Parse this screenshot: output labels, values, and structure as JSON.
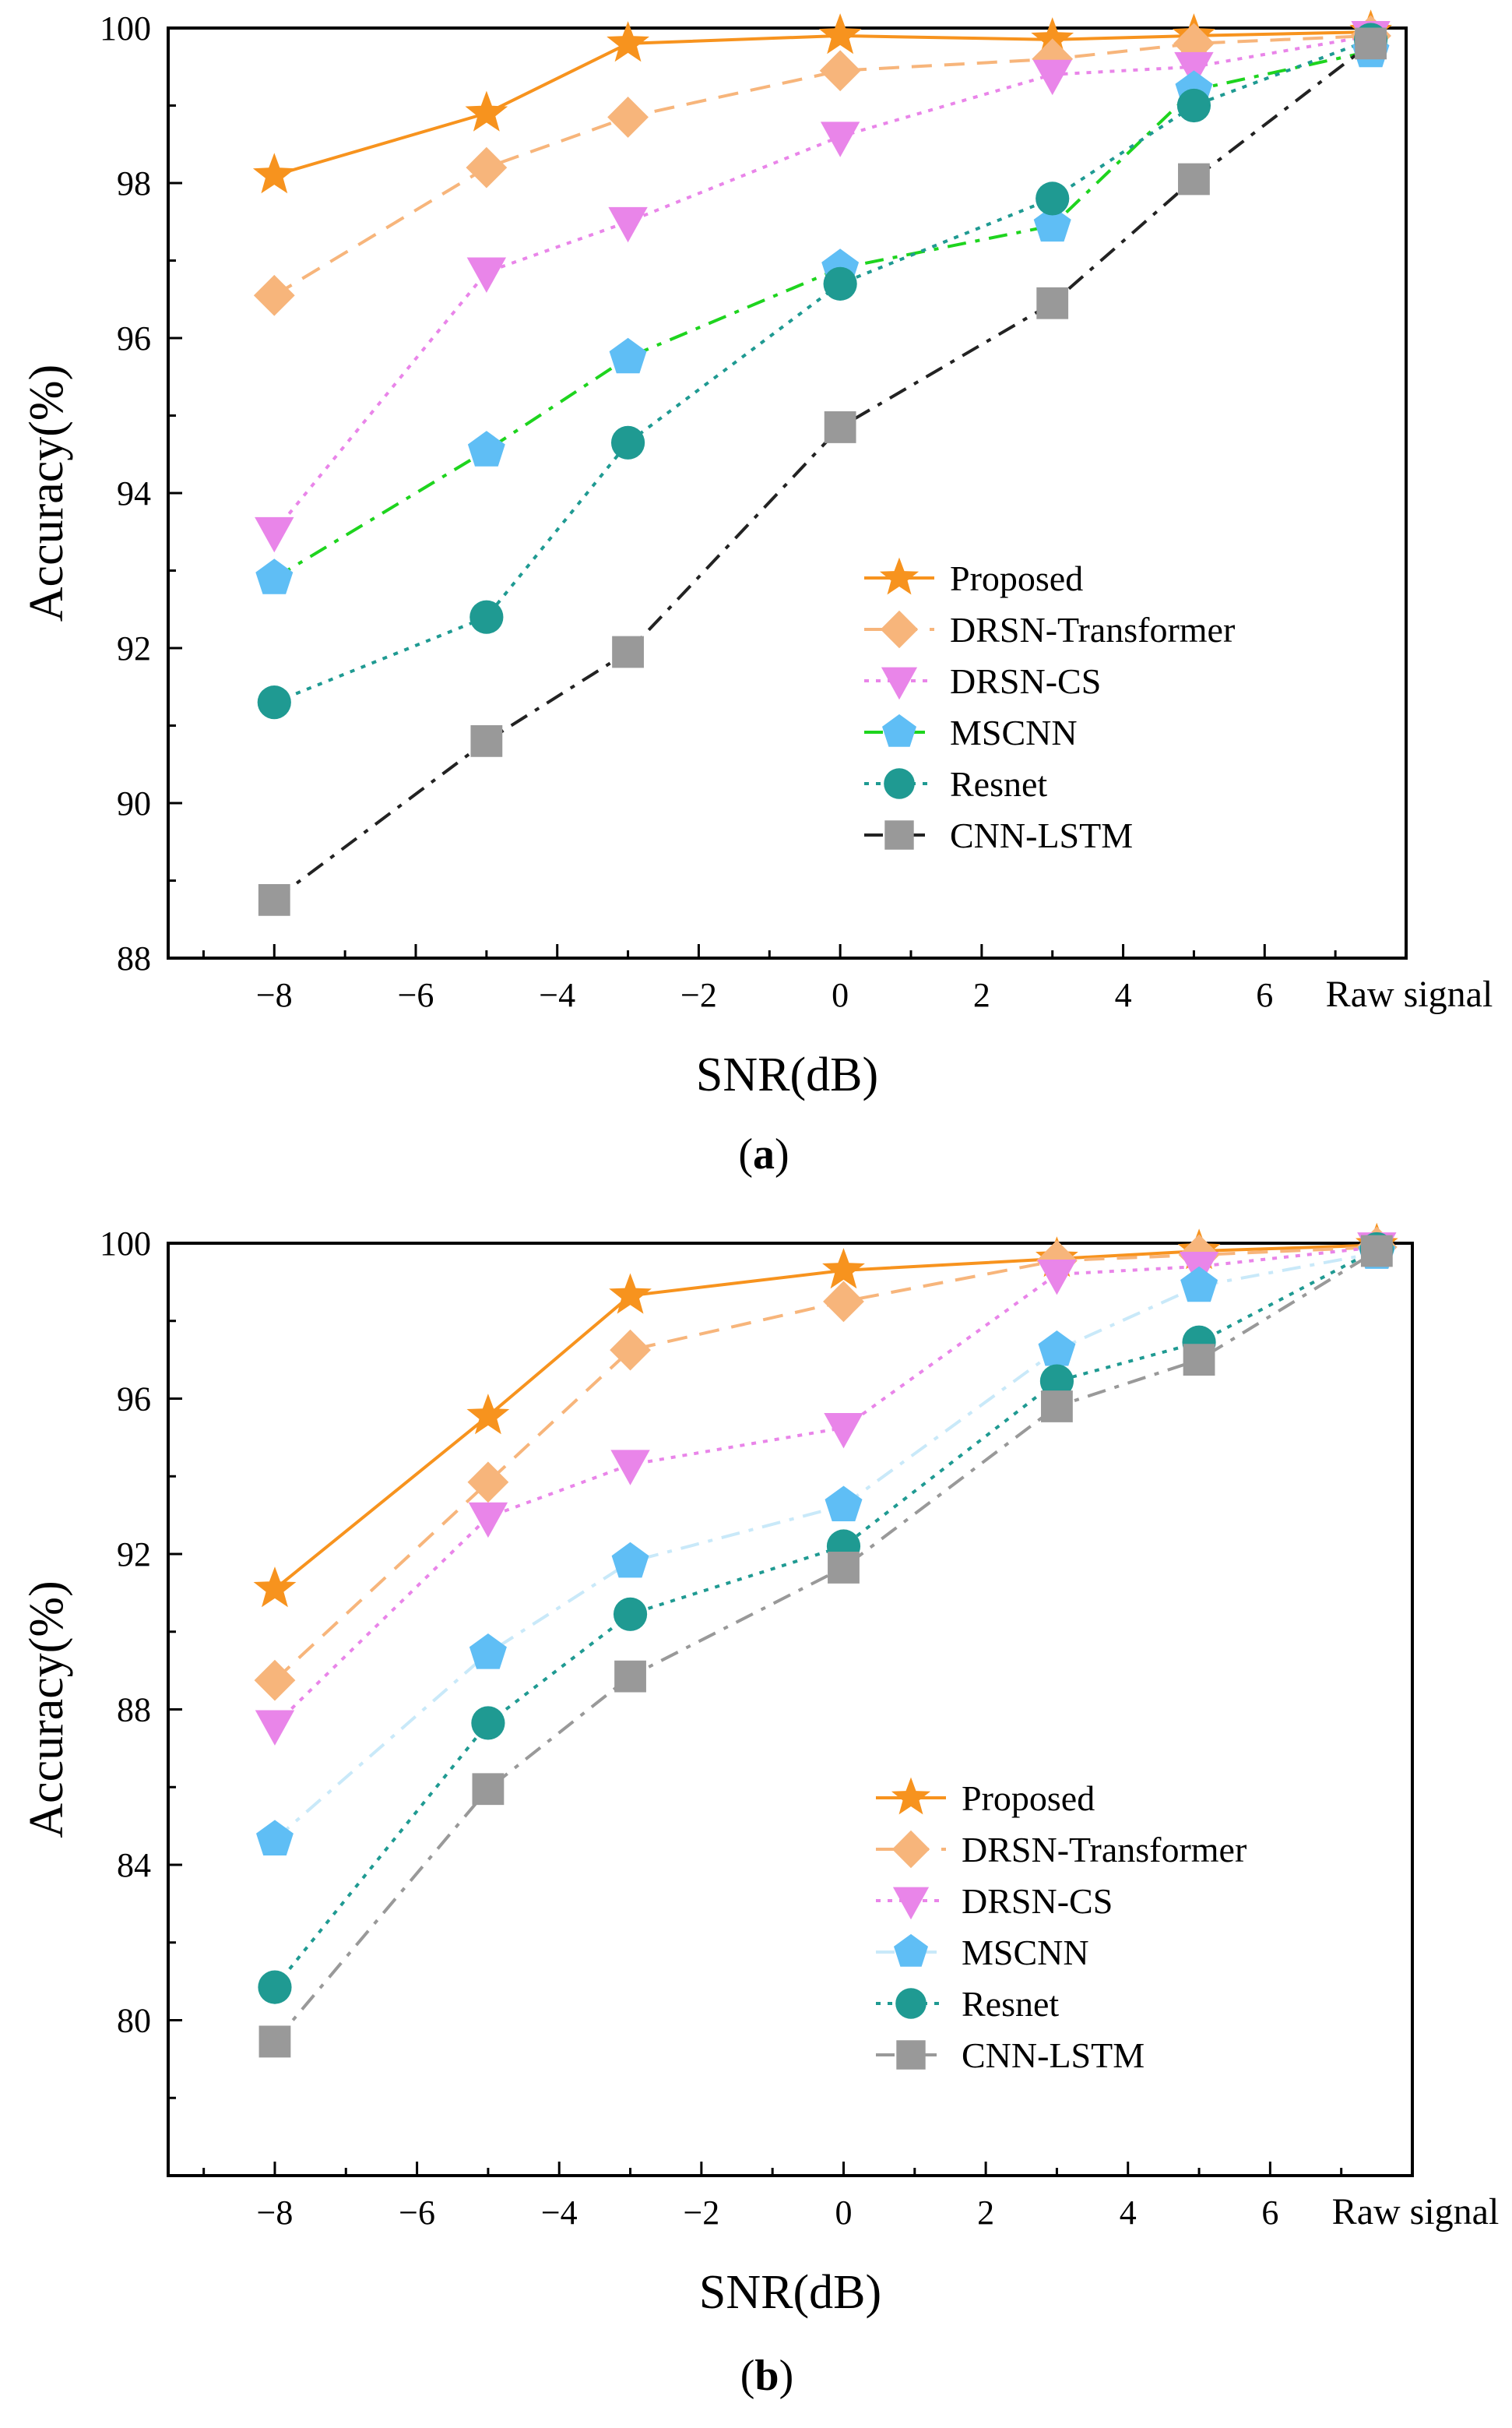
{
  "chart_data": [
    {
      "id": "a",
      "type": "line",
      "panel_label": "a",
      "xlabel": "SNR(dB)",
      "ylabel": "Accuracy(%)",
      "x_categories": [
        "−8",
        "−5",
        "−3",
        "0",
        "3",
        "5",
        "Raw signal"
      ],
      "x_values": [
        -8,
        -5,
        -3,
        0,
        3,
        5,
        7.5
      ],
      "xlim": [
        -9.5,
        8
      ],
      "xticks": [
        -8,
        -6,
        -4,
        -2,
        0,
        2,
        4,
        6
      ],
      "xtick_labels": [
        "−8",
        "−6",
        "−4",
        "−2",
        "0",
        "2",
        "4",
        "6"
      ],
      "extra_xlabel": "Raw signal",
      "ylim": [
        88,
        100
      ],
      "yticks": [
        88,
        90,
        92,
        94,
        96,
        98,
        100
      ],
      "ytick_labels": [
        "88",
        "90",
        "92",
        "94",
        "96",
        "98",
        "100"
      ],
      "legend_position": "lower-right",
      "series": [
        {
          "name": "Proposed",
          "marker": "star",
          "color": "#f7931e",
          "line_color": "#f7931e",
          "dash": "solid",
          "values": [
            98.1,
            98.9,
            99.8,
            99.9,
            99.85,
            99.9,
            99.95
          ]
        },
        {
          "name": "DRSN-Transformer",
          "marker": "diamond",
          "color": "#f7b57b",
          "line_color": "#f7b57b",
          "dash": "dashed",
          "values": [
            96.55,
            98.2,
            98.85,
            99.45,
            99.6,
            99.8,
            99.9
          ]
        },
        {
          "name": "DRSN-CS",
          "marker": "triangle-down",
          "color": "#e985e9",
          "line_color": "#e985e9",
          "dash": "dotted",
          "values": [
            93.5,
            96.85,
            97.5,
            98.6,
            99.4,
            99.5,
            99.9
          ]
        },
        {
          "name": "MSCNN",
          "marker": "pentagon",
          "color": "#5fbef5",
          "line_color": "#1ed41e",
          "dash": "dashdot",
          "values": [
            92.9,
            94.55,
            95.75,
            96.9,
            97.45,
            99.2,
            99.7
          ]
        },
        {
          "name": "Resnet",
          "marker": "circle",
          "color": "#1f9a92",
          "line_color": "#1f9a92",
          "dash": "dotted",
          "values": [
            91.3,
            92.4,
            94.65,
            96.7,
            97.8,
            99.0,
            99.85
          ]
        },
        {
          "name": "CNN-LSTM",
          "marker": "square",
          "color": "#999999",
          "line_color": "#222222",
          "dash": "dashdot",
          "values": [
            88.75,
            90.8,
            91.95,
            94.85,
            96.45,
            98.05,
            99.8
          ]
        }
      ]
    },
    {
      "id": "b",
      "type": "line",
      "panel_label": "b",
      "xlabel": "SNR(dB)",
      "ylabel": "Accuracy(%)",
      "x_categories": [
        "−8",
        "−5",
        "−3",
        "0",
        "3",
        "5",
        "Raw signal"
      ],
      "x_values": [
        -8,
        -5,
        -3,
        0,
        3,
        5,
        7.5
      ],
      "xlim": [
        -9.5,
        8
      ],
      "xticks": [
        -8,
        -6,
        -4,
        -2,
        0,
        2,
        4,
        6
      ],
      "xtick_labels": [
        "−8",
        "−6",
        "−4",
        "−2",
        "0",
        "2",
        "4",
        "6"
      ],
      "extra_xlabel": "Raw signal",
      "ylim": [
        76,
        100
      ],
      "yticks": [
        80,
        84,
        88,
        92,
        96,
        100
      ],
      "ytick_labels": [
        "80",
        "84",
        "88",
        "92",
        "96",
        "100"
      ],
      "legend_position": "lower-right",
      "series": [
        {
          "name": "Proposed",
          "marker": "star",
          "color": "#f7931e",
          "line_color": "#f7931e",
          "dash": "solid",
          "values": [
            91.1,
            95.55,
            98.65,
            99.3,
            99.6,
            99.8,
            99.95
          ]
        },
        {
          "name": "DRSN-Transformer",
          "marker": "diamond",
          "color": "#f7b57b",
          "line_color": "#f7b57b",
          "dash": "dashed",
          "values": [
            88.75,
            93.85,
            97.25,
            98.5,
            99.55,
            99.7,
            99.9
          ]
        },
        {
          "name": "DRSN-CS",
          "marker": "triangle-down",
          "color": "#e985e9",
          "line_color": "#e985e9",
          "dash": "dotted",
          "values": [
            87.6,
            92.95,
            94.3,
            95.25,
            99.2,
            99.4,
            99.9
          ]
        },
        {
          "name": "MSCNN",
          "marker": "pentagon",
          "color": "#5fbef5",
          "line_color": "#c9e9f9",
          "dash": "dashdot",
          "values": [
            84.65,
            89.45,
            91.8,
            93.25,
            97.25,
            98.9,
            99.75
          ]
        },
        {
          "name": "Resnet",
          "marker": "circle",
          "color": "#1f9a92",
          "line_color": "#1f9a92",
          "dash": "dotted",
          "values": [
            80.85,
            87.65,
            90.45,
            92.2,
            96.45,
            97.45,
            99.85
          ]
        },
        {
          "name": "CNN-LSTM",
          "marker": "square",
          "color": "#999999",
          "line_color": "#999999",
          "dash": "dashdot",
          "values": [
            79.45,
            85.95,
            88.85,
            91.65,
            95.8,
            97.0,
            99.8
          ]
        }
      ]
    }
  ]
}
